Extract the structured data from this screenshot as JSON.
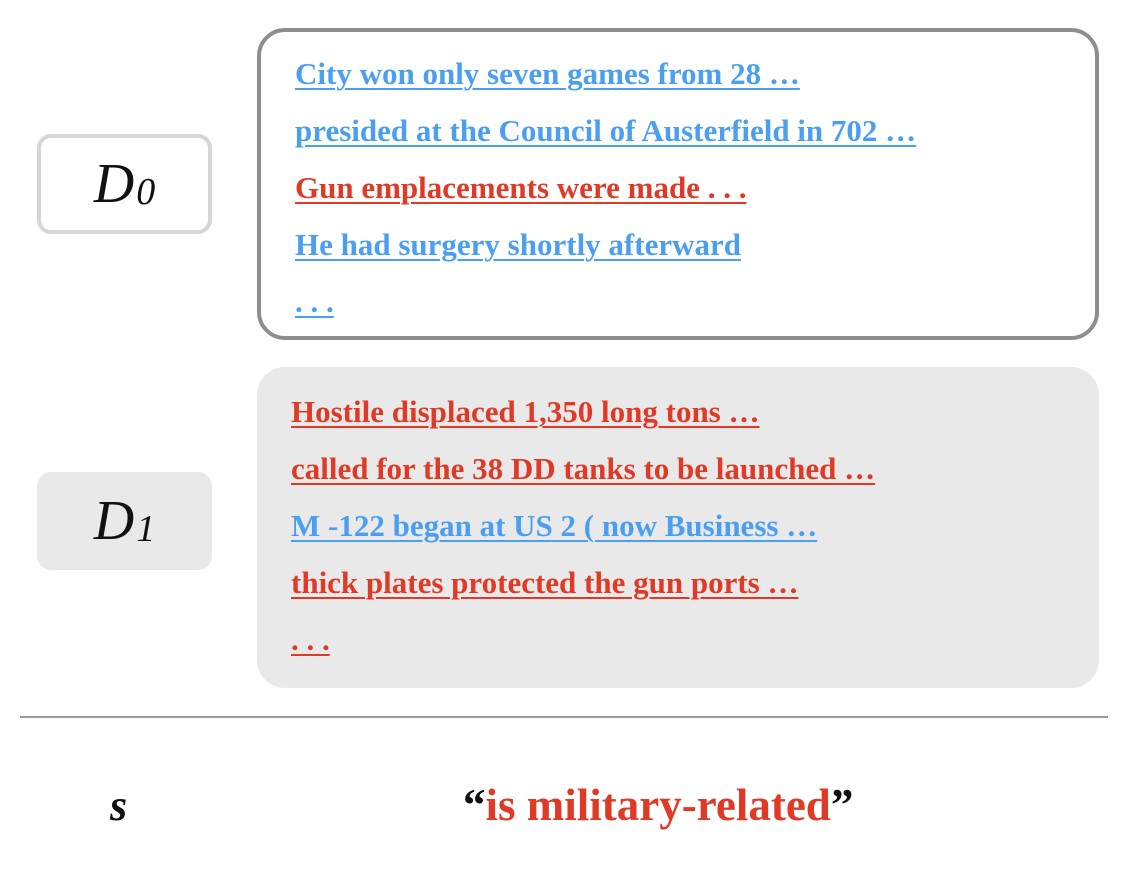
{
  "sets": [
    {
      "name": "D",
      "subscript": "0",
      "samples": [
        {
          "text": "City won only seven games from 28 …",
          "color": "#4a9ff0"
        },
        {
          "text": "presided at the Council of Austerfield in 702 …",
          "color": "#4a9ff0"
        },
        {
          "text": "Gun emplacements were made . . .",
          "color": "#e03a26"
        },
        {
          "text": "He had surgery shortly afterward",
          "color": "#4a9ff0"
        },
        {
          "text": ". . .",
          "color": "#4a9ff0"
        }
      ]
    },
    {
      "name": "D",
      "subscript": "1",
      "samples": [
        {
          "text": "Hostile displaced 1,350 long tons …",
          "color": "#e03a26"
        },
        {
          "text": "called for the 38 DD tanks to be launched …",
          "color": "#e03a26"
        },
        {
          "text": "M -122 began at US 2 ( now Business …",
          "color": "#4a9ff0"
        },
        {
          "text": "thick plates protected the gun ports …",
          "color": "#e03a26"
        },
        {
          "text": ". . .",
          "color": "#e03a26"
        }
      ]
    }
  ],
  "description": {
    "symbol": "s",
    "open_quote": "“",
    "text": "is military-related",
    "close_quote": "”"
  },
  "colors": {
    "positive": "#e03a26",
    "negative": "#4a9ff0"
  }
}
